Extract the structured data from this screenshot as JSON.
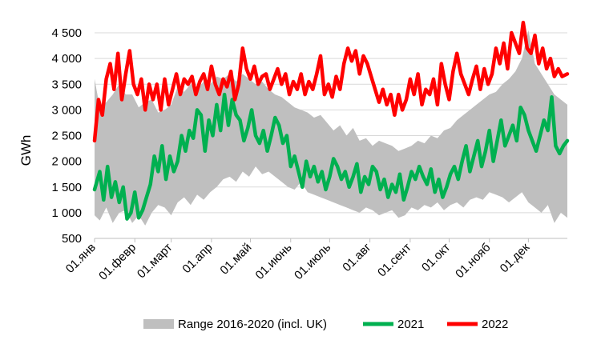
{
  "chart_data": {
    "type": "line",
    "ylabel": "GWh",
    "ylim": [
      500,
      4500
    ],
    "yticks": [
      500,
      1000,
      1500,
      2000,
      2500,
      3000,
      3500,
      4000,
      4500
    ],
    "ytick_labels": [
      "500",
      "1 000",
      "1 500",
      "2 000",
      "2 500",
      "3 000",
      "3 500",
      "4 000",
      "4 500"
    ],
    "xlim": [
      1,
      365
    ],
    "xticks": [
      1,
      32,
      60,
      91,
      121,
      152,
      182,
      213,
      244,
      274,
      305,
      335
    ],
    "xtick_labels": [
      "01.янв",
      "01.февр",
      "01.март",
      "01.апр",
      "01.май",
      "01.июнь",
      "01.июль",
      "01.авг",
      "01.сент",
      "01.окт",
      "01.нояб",
      "01.дек"
    ],
    "grid": "horizontal",
    "legend_position": "bottom",
    "colors": {
      "range": "#bfbfbf",
      "s2021": "#00b050",
      "s2022": "#ff0000",
      "grid": "#d9d9d9"
    },
    "range": {
      "name": "Range 2016-2020 (incl. UK)",
      "x": [
        1,
        5,
        10,
        15,
        20,
        25,
        30,
        35,
        40,
        45,
        50,
        55,
        60,
        65,
        70,
        75,
        80,
        85,
        90,
        95,
        100,
        105,
        110,
        115,
        120,
        125,
        130,
        135,
        140,
        145,
        150,
        155,
        160,
        165,
        170,
        175,
        180,
        185,
        190,
        195,
        200,
        205,
        210,
        215,
        220,
        225,
        230,
        235,
        240,
        245,
        250,
        255,
        260,
        265,
        270,
        275,
        280,
        285,
        290,
        295,
        300,
        305,
        310,
        315,
        320,
        325,
        330,
        335,
        340,
        345,
        350,
        355,
        360,
        365
      ],
      "low": [
        950,
        850,
        1100,
        800,
        1000,
        1050,
        800,
        950,
        750,
        1000,
        1150,
        1100,
        950,
        1200,
        1300,
        1150,
        1350,
        1250,
        1400,
        1500,
        1650,
        1700,
        1600,
        1800,
        1700,
        1900,
        1750,
        1800,
        1700,
        1600,
        1500,
        1450,
        1600,
        1400,
        1350,
        1300,
        1250,
        1200,
        1150,
        1100,
        1050,
        1000,
        1100,
        1050,
        950,
        1000,
        1050,
        900,
        950,
        1100,
        1050,
        1150,
        1100,
        1200,
        1050,
        1150,
        1200,
        1100,
        1250,
        1300,
        1250,
        1400,
        1350,
        1300,
        1200,
        1300,
        1400,
        1200,
        1100,
        1000,
        1150,
        800,
        1000,
        900
      ],
      "high": [
        3600,
        3050,
        3150,
        3300,
        3500,
        3300,
        3300,
        3050,
        3150,
        3200,
        2950,
        3000,
        3100,
        3450,
        3350,
        3500,
        3400,
        3550,
        3500,
        3650,
        3600,
        3700,
        3550,
        3700,
        3600,
        3500,
        3550,
        3400,
        3300,
        3250,
        3150,
        3050,
        3000,
        2950,
        2850,
        2900,
        2750,
        2600,
        2700,
        2500,
        2650,
        2400,
        2450,
        2300,
        2400,
        2350,
        2300,
        2200,
        2250,
        2300,
        2400,
        2350,
        2500,
        2450,
        2600,
        2650,
        2800,
        2900,
        3000,
        3100,
        3200,
        3300,
        3350,
        3500,
        3600,
        3750,
        4000,
        4550,
        3900,
        3700,
        3500,
        3300,
        3200,
        3100
      ]
    },
    "series": [
      {
        "name": "2021",
        "x": [
          1,
          5,
          8,
          11,
          14,
          17,
          20,
          23,
          26,
          29,
          32,
          35,
          38,
          41,
          44,
          47,
          50,
          53,
          56,
          59,
          62,
          65,
          68,
          71,
          74,
          77,
          80,
          83,
          86,
          89,
          92,
          95,
          98,
          101,
          104,
          107,
          110,
          113,
          116,
          119,
          122,
          125,
          128,
          131,
          134,
          137,
          140,
          143,
          146,
          149,
          152,
          155,
          158,
          161,
          164,
          167,
          170,
          173,
          176,
          179,
          182,
          185,
          188,
          191,
          194,
          197,
          200,
          203,
          206,
          209,
          212,
          215,
          218,
          221,
          224,
          227,
          230,
          233,
          236,
          239,
          242,
          245,
          248,
          251,
          254,
          257,
          260,
          263,
          266,
          269,
          272,
          275,
          278,
          281,
          284,
          287,
          290,
          293,
          296,
          299,
          302,
          305,
          308,
          311,
          314,
          317,
          320,
          323,
          326,
          329,
          332,
          335,
          338,
          341,
          344,
          347,
          350,
          353,
          356,
          359,
          362,
          365
        ],
        "values": [
          1450,
          1800,
          1250,
          1900,
          1300,
          1600,
          1200,
          1500,
          880,
          1000,
          1400,
          900,
          1050,
          1300,
          1550,
          2100,
          1800,
          2300,
          1650,
          2100,
          1800,
          2000,
          2500,
          2200,
          2600,
          2450,
          3000,
          2900,
          2200,
          2800,
          2500,
          3100,
          2600,
          3300,
          2700,
          3200,
          2900,
          2800,
          2400,
          2650,
          3000,
          2500,
          2350,
          2600,
          2200,
          2500,
          2850,
          2700,
          2350,
          2500,
          1900,
          2100,
          1800,
          1500,
          2000,
          1700,
          1900,
          1600,
          1800,
          1450,
          1700,
          2050,
          1900,
          1650,
          1800,
          1500,
          1700,
          1950,
          1400,
          1700,
          1550,
          1900,
          1800,
          1450,
          1650,
          1300,
          1550,
          1400,
          1750,
          1250,
          1500,
          1800,
          1650,
          1900,
          1700,
          1550,
          1850,
          1400,
          1650,
          1300,
          1500,
          1750,
          1900,
          1650,
          2000,
          2300,
          1800,
          2100,
          2400,
          1900,
          2200,
          2600,
          2000,
          2400,
          2800,
          2300,
          2500,
          2700,
          2400,
          3050,
          2900,
          2600,
          2400,
          2200,
          2500,
          2800,
          2600,
          3250,
          2300,
          2150,
          2300,
          2400
        ]
      },
      {
        "name": "2022",
        "x": [
          1,
          4,
          7,
          10,
          13,
          16,
          19,
          22,
          25,
          28,
          31,
          34,
          37,
          40,
          43,
          46,
          49,
          52,
          55,
          58,
          61,
          64,
          67,
          70,
          73,
          76,
          79,
          82,
          85,
          88,
          91,
          94,
          97,
          100,
          103,
          106,
          109,
          112,
          115,
          118,
          121,
          124,
          127,
          130,
          133,
          136,
          139,
          142,
          145,
          148,
          151,
          154,
          157,
          160,
          163,
          166,
          169,
          172,
          175,
          178,
          181,
          184,
          187,
          190,
          193,
          196,
          199,
          202,
          205,
          208,
          211,
          214,
          217,
          220,
          223,
          226,
          229,
          232,
          235,
          238,
          241,
          244,
          247,
          250,
          253,
          256,
          259,
          262,
          265,
          268,
          271,
          274,
          277,
          280,
          283,
          286,
          289,
          292,
          295,
          298,
          301,
          304,
          307,
          310,
          313,
          316,
          319,
          322,
          325,
          328,
          331,
          334,
          337,
          340,
          343,
          346,
          349,
          352,
          355,
          358,
          361,
          365
        ],
        "values": [
          2400,
          3200,
          2900,
          3600,
          3900,
          3400,
          4100,
          3200,
          3700,
          4150,
          3500,
          3300,
          3600,
          3000,
          3500,
          3200,
          3500,
          3000,
          3600,
          3100,
          3400,
          3700,
          3300,
          3600,
          3500,
          3650,
          3300,
          3550,
          3700,
          3400,
          3850,
          3500,
          3300,
          3600,
          3450,
          3750,
          3200,
          3500,
          4200,
          3800,
          3600,
          3850,
          3500,
          3650,
          3700,
          3400,
          3600,
          3800,
          3500,
          3700,
          3300,
          3550,
          3400,
          3700,
          3300,
          3550,
          3400,
          3700,
          4050,
          3300,
          3500,
          3250,
          3650,
          3400,
          3900,
          4200,
          3950,
          4150,
          3700,
          4050,
          3900,
          3650,
          3400,
          3150,
          3400,
          3100,
          3300,
          2900,
          3300,
          3000,
          3200,
          3600,
          3300,
          3700,
          3100,
          3400,
          3300,
          3600,
          3100,
          3900,
          3500,
          3200,
          3750,
          4100,
          3700,
          3500,
          3300,
          3600,
          3850,
          3400,
          3800,
          3500,
          3700,
          4200,
          3900,
          4300,
          3800,
          4500,
          4300,
          4100,
          4700,
          4200,
          4100,
          4450,
          3900,
          4200,
          3800,
          4000,
          3650,
          3800,
          3650,
          3700
        ]
      }
    ]
  }
}
